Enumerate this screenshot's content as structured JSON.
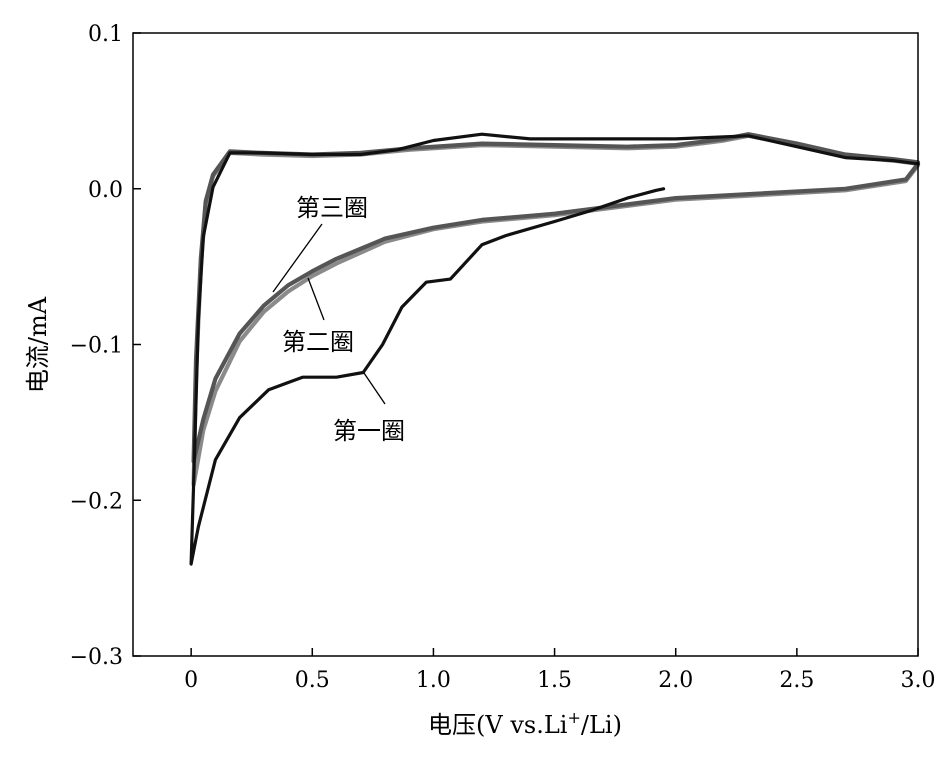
{
  "chart_data": {
    "type": "line",
    "title": "",
    "xlabel": "电压(V vs.Li+/Li)",
    "xlabel_parts": {
      "main": "电压(V vs.Li",
      "sup": "+",
      "tail": "/Li)"
    },
    "ylabel": "电流/mA",
    "xlim": [
      -0.24,
      3.0
    ],
    "ylim": [
      -0.3,
      0.1
    ],
    "xticks": [
      "0",
      "0.5",
      "1.0",
      "1.5",
      "2.0",
      "2.5",
      "3.0"
    ],
    "xtick_values": [
      0,
      0.5,
      1.0,
      1.5,
      2.0,
      2.5,
      3.0
    ],
    "yticks": [
      "0.1",
      "0.0",
      "−0.1",
      "−0.2",
      "−0.3"
    ],
    "ytick_values": [
      0.1,
      0.0,
      -0.1,
      -0.2,
      -0.3
    ],
    "grid": false,
    "series": [
      {
        "name": "第一圈",
        "color": "#111111",
        "x": [
          1.95,
          1.92,
          1.8,
          1.65,
          1.5,
          1.3,
          1.2,
          1.07,
          0.97,
          0.87,
          0.79,
          0.71,
          0.6,
          0.46,
          0.32,
          0.2,
          0.1,
          0.03,
          0.0,
          0.01,
          0.03,
          0.05,
          0.09,
          0.16,
          0.29,
          0.5,
          0.7,
          0.85,
          1.0,
          1.2,
          1.4,
          1.7,
          2.0,
          2.3,
          2.5,
          2.7,
          2.9,
          3.0
        ],
        "y": [
          0.0,
          -0.001,
          -0.006,
          -0.014,
          -0.021,
          -0.03,
          -0.036,
          -0.058,
          -0.06,
          -0.076,
          -0.1,
          -0.118,
          -0.121,
          -0.121,
          -0.129,
          -0.147,
          -0.174,
          -0.217,
          -0.241,
          -0.19,
          -0.084,
          -0.031,
          0.001,
          0.023,
          0.023,
          0.022,
          0.022,
          0.025,
          0.031,
          0.035,
          0.032,
          0.032,
          0.032,
          0.034,
          0.027,
          0.02,
          0.018,
          0.016
        ]
      },
      {
        "name": "第二圈",
        "color": "#8a8a8a",
        "x": [
          3.0,
          2.95,
          2.7,
          2.0,
          1.5,
          1.2,
          1.0,
          0.8,
          0.6,
          0.5,
          0.4,
          0.3,
          0.2,
          0.1,
          0.05,
          0.01,
          0.02,
          0.04,
          0.06,
          0.09,
          0.16,
          0.29,
          0.5,
          0.7,
          0.9,
          1.2,
          1.5,
          1.8,
          2.0,
          2.2,
          2.3,
          2.5,
          2.7,
          2.9,
          3.0
        ],
        "y": [
          0.015,
          0.005,
          -0.001,
          -0.007,
          -0.017,
          -0.021,
          -0.026,
          -0.034,
          -0.048,
          -0.056,
          -0.066,
          -0.079,
          -0.098,
          -0.13,
          -0.155,
          -0.19,
          -0.12,
          -0.05,
          -0.01,
          0.008,
          0.023,
          0.022,
          0.021,
          0.022,
          0.025,
          0.028,
          0.027,
          0.026,
          0.027,
          0.031,
          0.034,
          0.028,
          0.021,
          0.018,
          0.016
        ]
      },
      {
        "name": "第三圈",
        "color": "#555555",
        "x": [
          3.0,
          2.95,
          2.7,
          2.0,
          1.5,
          1.2,
          1.0,
          0.8,
          0.6,
          0.5,
          0.4,
          0.3,
          0.2,
          0.1,
          0.05,
          0.01,
          0.02,
          0.04,
          0.06,
          0.09,
          0.16,
          0.29,
          0.5,
          0.7,
          0.9,
          1.2,
          1.5,
          1.8,
          2.0,
          2.2,
          2.3,
          2.5,
          2.7,
          2.9,
          3.0
        ],
        "y": [
          0.016,
          0.006,
          0.0,
          -0.006,
          -0.016,
          -0.02,
          -0.025,
          -0.032,
          -0.045,
          -0.053,
          -0.062,
          -0.075,
          -0.093,
          -0.122,
          -0.148,
          -0.175,
          -0.11,
          -0.045,
          -0.008,
          0.009,
          0.024,
          0.023,
          0.022,
          0.023,
          0.026,
          0.029,
          0.028,
          0.027,
          0.028,
          0.032,
          0.035,
          0.029,
          0.022,
          0.019,
          0.017
        ]
      }
    ],
    "annotations": [
      "第三圈",
      "第二圈",
      "第一圈"
    ]
  }
}
